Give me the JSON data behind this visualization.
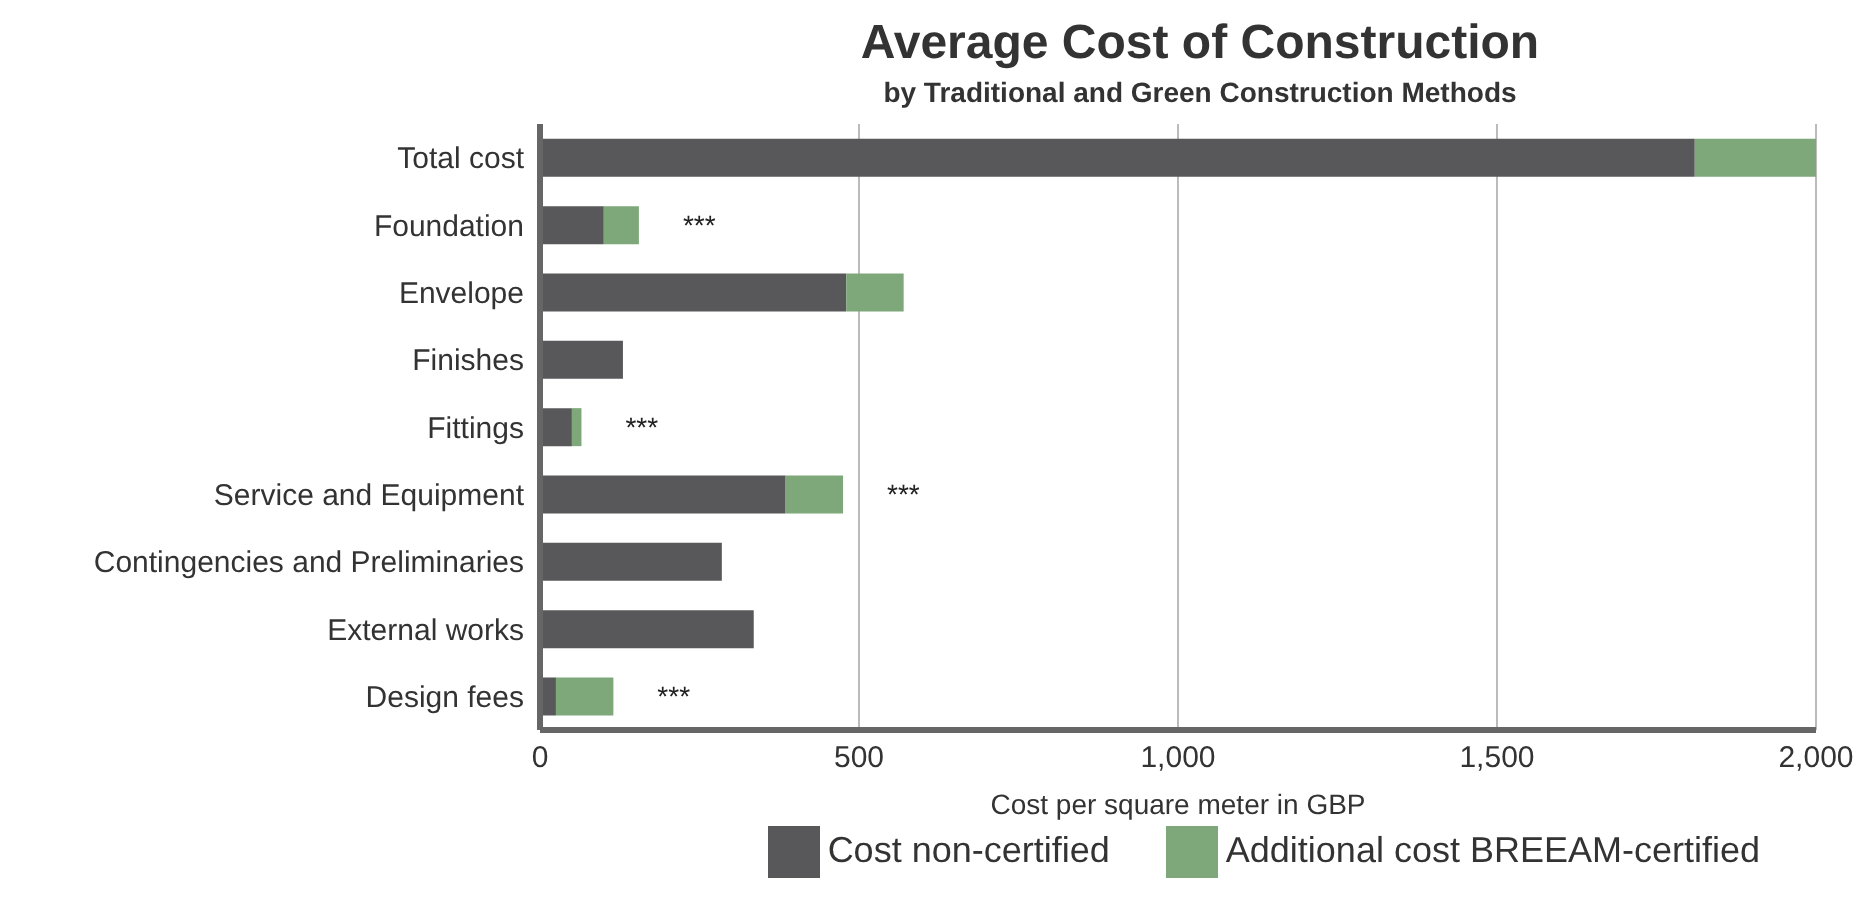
{
  "chart_data": {
    "type": "bar",
    "orientation": "horizontal",
    "stacked": true,
    "title": "Average Cost of Construction",
    "subtitle": "by Traditional and Green Construction Methods",
    "xlabel": "Cost per square meter in GBP",
    "categories": [
      "Total cost",
      "Foundation",
      "Envelope",
      "Finishes",
      "Fittings",
      "Service and Equipment",
      "Contingencies and Preliminaries",
      "External works",
      "Design fees"
    ],
    "series": [
      {
        "name": "Cost non-certified",
        "color": "#58585a",
        "values": [
          1810,
          100,
          480,
          130,
          50,
          385,
          285,
          335,
          25
        ]
      },
      {
        "name": "Additional cost BREEAM-certified",
        "color": "#7ea87a",
        "values": [
          190,
          55,
          90,
          0,
          15,
          90,
          0,
          0,
          90
        ]
      }
    ],
    "xlim": [
      0,
      2000
    ],
    "xticks": [
      {
        "value": 0,
        "label": "0"
      },
      {
        "value": 500,
        "label": "500"
      },
      {
        "value": 1000,
        "label": "1,000"
      },
      {
        "value": 1500,
        "label": "1,500"
      },
      {
        "value": 2000,
        "label": "2,000"
      }
    ],
    "grid": "x",
    "legend": "bottom",
    "annotations": [
      {
        "text": "***",
        "x": 155,
        "y": "Foundation"
      },
      {
        "text": "***",
        "x": 65,
        "y": "Fittings"
      },
      {
        "text": "***",
        "x": 475,
        "y": "Service and Equipment"
      },
      {
        "text": "***",
        "x": 115,
        "y": "Design fees"
      }
    ]
  }
}
